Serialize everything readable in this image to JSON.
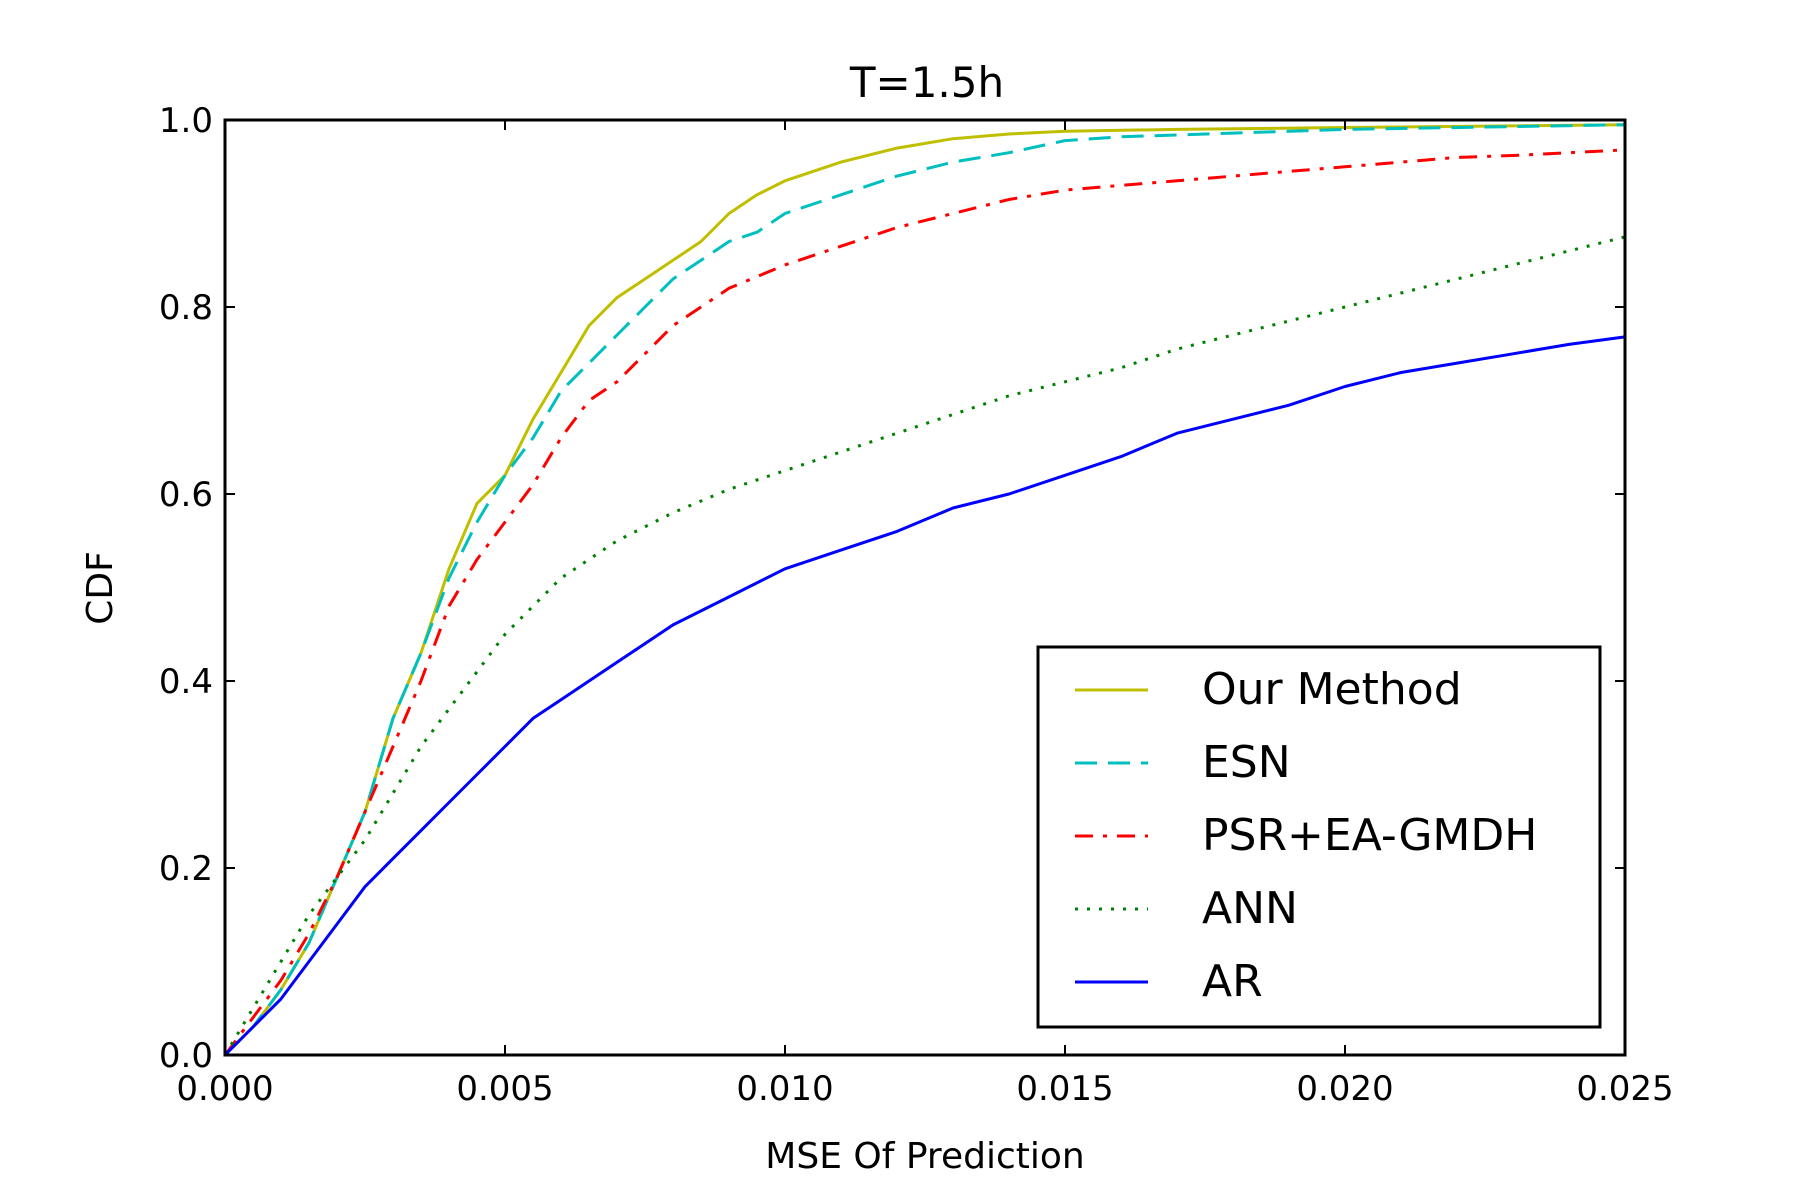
{
  "chart_data": {
    "type": "line",
    "title": "T=1.5h",
    "xlabel": "MSE Of Prediction",
    "ylabel": "CDF",
    "xlim": [
      0,
      0.025
    ],
    "ylim": [
      0,
      1.0
    ],
    "x_ticks": [
      "0.000",
      "0.005",
      "0.010",
      "0.015",
      "0.020",
      "0.025"
    ],
    "y_ticks": [
      "0.0",
      "0.2",
      "0.4",
      "0.6",
      "0.8",
      "1.0"
    ],
    "grid": false,
    "legend_position": "lower-right",
    "series": [
      {
        "name": "Our Method",
        "color": "#bfbf00",
        "style": "solid",
        "points": [
          [
            0,
            0
          ],
          [
            0.0005,
            0.03
          ],
          [
            0.001,
            0.07
          ],
          [
            0.0015,
            0.12
          ],
          [
            0.002,
            0.19
          ],
          [
            0.0025,
            0.26
          ],
          [
            0.003,
            0.36
          ],
          [
            0.0035,
            0.43
          ],
          [
            0.004,
            0.52
          ],
          [
            0.0045,
            0.59
          ],
          [
            0.005,
            0.62
          ],
          [
            0.0055,
            0.68
          ],
          [
            0.006,
            0.73
          ],
          [
            0.0065,
            0.78
          ],
          [
            0.007,
            0.81
          ],
          [
            0.0075,
            0.83
          ],
          [
            0.008,
            0.85
          ],
          [
            0.0085,
            0.87
          ],
          [
            0.009,
            0.9
          ],
          [
            0.0095,
            0.92
          ],
          [
            0.01,
            0.935
          ],
          [
            0.011,
            0.955
          ],
          [
            0.012,
            0.97
          ],
          [
            0.013,
            0.98
          ],
          [
            0.014,
            0.985
          ],
          [
            0.015,
            0.988
          ],
          [
            0.017,
            0.99
          ],
          [
            0.02,
            0.992
          ],
          [
            0.025,
            0.995
          ]
        ]
      },
      {
        "name": "ESN",
        "color": "#00bfbf",
        "style": "dashed",
        "points": [
          [
            0,
            0
          ],
          [
            0.0005,
            0.03
          ],
          [
            0.001,
            0.07
          ],
          [
            0.0015,
            0.12
          ],
          [
            0.002,
            0.19
          ],
          [
            0.0025,
            0.26
          ],
          [
            0.003,
            0.36
          ],
          [
            0.0035,
            0.43
          ],
          [
            0.004,
            0.51
          ],
          [
            0.0045,
            0.57
          ],
          [
            0.005,
            0.62
          ],
          [
            0.0055,
            0.66
          ],
          [
            0.006,
            0.71
          ],
          [
            0.0065,
            0.74
          ],
          [
            0.007,
            0.77
          ],
          [
            0.0075,
            0.8
          ],
          [
            0.008,
            0.83
          ],
          [
            0.0085,
            0.85
          ],
          [
            0.009,
            0.87
          ],
          [
            0.0095,
            0.88
          ],
          [
            0.01,
            0.9
          ],
          [
            0.011,
            0.92
          ],
          [
            0.012,
            0.94
          ],
          [
            0.013,
            0.955
          ],
          [
            0.014,
            0.965
          ],
          [
            0.015,
            0.978
          ],
          [
            0.016,
            0.982
          ],
          [
            0.018,
            0.986
          ],
          [
            0.02,
            0.99
          ],
          [
            0.025,
            0.995
          ]
        ]
      },
      {
        "name": "PSR+EA-GMDH",
        "color": "#ff0000",
        "style": "dashdot",
        "points": [
          [
            0,
            0
          ],
          [
            0.0005,
            0.04
          ],
          [
            0.001,
            0.08
          ],
          [
            0.0015,
            0.13
          ],
          [
            0.002,
            0.19
          ],
          [
            0.0025,
            0.26
          ],
          [
            0.003,
            0.33
          ],
          [
            0.0035,
            0.4
          ],
          [
            0.004,
            0.48
          ],
          [
            0.0045,
            0.53
          ],
          [
            0.005,
            0.57
          ],
          [
            0.0055,
            0.61
          ],
          [
            0.006,
            0.66
          ],
          [
            0.0065,
            0.7
          ],
          [
            0.007,
            0.72
          ],
          [
            0.0075,
            0.75
          ],
          [
            0.008,
            0.78
          ],
          [
            0.009,
            0.82
          ],
          [
            0.01,
            0.845
          ],
          [
            0.011,
            0.865
          ],
          [
            0.012,
            0.885
          ],
          [
            0.013,
            0.9
          ],
          [
            0.014,
            0.915
          ],
          [
            0.015,
            0.925
          ],
          [
            0.016,
            0.93
          ],
          [
            0.017,
            0.935
          ],
          [
            0.018,
            0.94
          ],
          [
            0.019,
            0.945
          ],
          [
            0.02,
            0.95
          ],
          [
            0.021,
            0.955
          ],
          [
            0.022,
            0.96
          ],
          [
            0.023,
            0.962
          ],
          [
            0.024,
            0.965
          ],
          [
            0.025,
            0.968
          ]
        ]
      },
      {
        "name": "ANN",
        "color": "#008000",
        "style": "dotted",
        "points": [
          [
            0,
            0
          ],
          [
            0.0005,
            0.05
          ],
          [
            0.001,
            0.1
          ],
          [
            0.0015,
            0.15
          ],
          [
            0.002,
            0.19
          ],
          [
            0.0025,
            0.23
          ],
          [
            0.003,
            0.28
          ],
          [
            0.0035,
            0.33
          ],
          [
            0.004,
            0.37
          ],
          [
            0.0045,
            0.41
          ],
          [
            0.005,
            0.45
          ],
          [
            0.006,
            0.51
          ],
          [
            0.007,
            0.55
          ],
          [
            0.008,
            0.58
          ],
          [
            0.009,
            0.605
          ],
          [
            0.01,
            0.625
          ],
          [
            0.011,
            0.645
          ],
          [
            0.012,
            0.665
          ],
          [
            0.013,
            0.685
          ],
          [
            0.014,
            0.705
          ],
          [
            0.015,
            0.72
          ],
          [
            0.016,
            0.735
          ],
          [
            0.017,
            0.755
          ],
          [
            0.018,
            0.77
          ],
          [
            0.019,
            0.785
          ],
          [
            0.02,
            0.8
          ],
          [
            0.021,
            0.815
          ],
          [
            0.022,
            0.83
          ],
          [
            0.023,
            0.845
          ],
          [
            0.024,
            0.86
          ],
          [
            0.025,
            0.875
          ]
        ]
      },
      {
        "name": "AR",
        "color": "#0000ff",
        "style": "solid",
        "points": [
          [
            0,
            0
          ],
          [
            0.0005,
            0.03
          ],
          [
            0.001,
            0.06
          ],
          [
            0.0015,
            0.1
          ],
          [
            0.002,
            0.14
          ],
          [
            0.0025,
            0.18
          ],
          [
            0.003,
            0.21
          ],
          [
            0.0035,
            0.24
          ],
          [
            0.004,
            0.27
          ],
          [
            0.0045,
            0.3
          ],
          [
            0.005,
            0.33
          ],
          [
            0.0055,
            0.36
          ],
          [
            0.006,
            0.38
          ],
          [
            0.0065,
            0.4
          ],
          [
            0.007,
            0.42
          ],
          [
            0.008,
            0.46
          ],
          [
            0.009,
            0.49
          ],
          [
            0.01,
            0.52
          ],
          [
            0.011,
            0.54
          ],
          [
            0.012,
            0.56
          ],
          [
            0.013,
            0.585
          ],
          [
            0.014,
            0.6
          ],
          [
            0.015,
            0.62
          ],
          [
            0.016,
            0.64
          ],
          [
            0.017,
            0.665
          ],
          [
            0.018,
            0.68
          ],
          [
            0.019,
            0.695
          ],
          [
            0.02,
            0.715
          ],
          [
            0.021,
            0.73
          ],
          [
            0.022,
            0.74
          ],
          [
            0.023,
            0.75
          ],
          [
            0.024,
            0.76
          ],
          [
            0.025,
            0.768
          ]
        ]
      }
    ]
  }
}
